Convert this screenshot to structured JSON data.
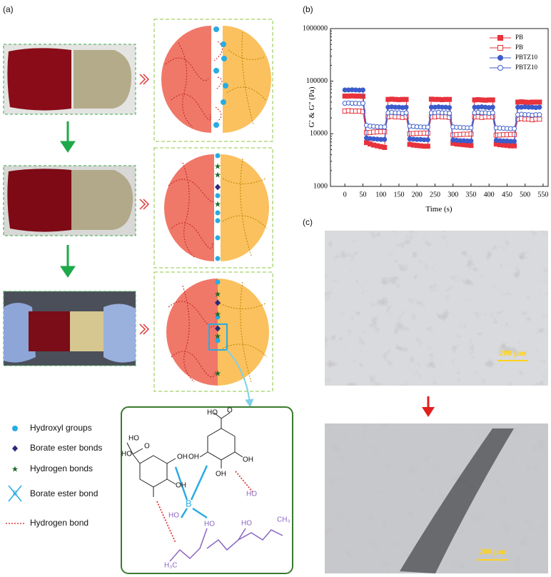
{
  "panel_labels": [
    "(a)",
    "(b)",
    "(c)"
  ],
  "legend": [
    "Hydroxyl groups",
    "Borate ester bonds",
    "Hydrogen bonds",
    "Borate ester bond",
    "Hydrogen bond"
  ],
  "legend_symbol": "B",
  "scale_bars": [
    "200 μm",
    "200 μm"
  ],
  "structure_labels": [
    "HO",
    "O",
    "HO",
    "OH",
    "OH",
    "HO",
    "O",
    "OH",
    "OH",
    "OH",
    "B",
    "HO",
    "HO",
    "HO",
    "HO",
    "CH₃",
    "H₃C"
  ],
  "chart_data": {
    "type": "line",
    "ylabel": "G' & G'' (Pa)",
    "xlabel": "Time (s)",
    "log_y": true,
    "legend": "top-right",
    "x": [
      0,
      10,
      20,
      30,
      40,
      50,
      60,
      70,
      80,
      90,
      100,
      110,
      120,
      130,
      140,
      150,
      160,
      170,
      180,
      190,
      200,
      210,
      220,
      230,
      240,
      250,
      260,
      270,
      280,
      290,
      300,
      310,
      320,
      330,
      340,
      350,
      360,
      370,
      380,
      390,
      400,
      410,
      420,
      430,
      440,
      450,
      460,
      470,
      480,
      490,
      500,
      510,
      520,
      530,
      540
    ],
    "xlim": [
      -40,
      564
    ],
    "xticks": [
      0,
      50,
      100,
      150,
      200,
      250,
      300,
      350,
      400,
      450,
      500,
      550
    ],
    "ylim": [
      1000,
      1000000
    ],
    "yticks": [
      1000,
      10000,
      100000,
      1000000
    ],
    "series": [
      {
        "name": "PB",
        "color": "#e8323c",
        "marker": "square",
        "fill": "filled",
        "values": [
          52000,
          52000,
          52500,
          52000,
          52000,
          51500,
          6800,
          6400,
          6100,
          5900,
          5700,
          5500,
          45000,
          45500,
          45000,
          44500,
          45000,
          45000,
          6300,
          6100,
          6000,
          5900,
          5800,
          5800,
          45500,
          45000,
          45000,
          44500,
          45000,
          45000,
          6600,
          6400,
          6300,
          6200,
          6100,
          6000,
          44000,
          44500,
          44000,
          43500,
          44000,
          44000,
          6400,
          6200,
          6100,
          6000,
          5900,
          5900,
          40000,
          40500,
          40000,
          39500,
          40000,
          40000,
          40000
        ]
      },
      {
        "name": "PB",
        "color": "#e8323c",
        "marker": "square",
        "fill": "open",
        "values": [
          27000,
          27500,
          27000,
          27000,
          27000,
          26500,
          10500,
          10600,
          10800,
          10900,
          11000,
          11000,
          21000,
          21500,
          21000,
          21000,
          20500,
          21000,
          10000,
          10100,
          10200,
          10200,
          10300,
          10300,
          21000,
          21000,
          21500,
          21000,
          21000,
          20500,
          9500,
          9600,
          9700,
          9800,
          9800,
          9900,
          21000,
          21000,
          20500,
          21000,
          21000,
          21000,
          9400,
          9500,
          9600,
          9600,
          9700,
          9700,
          19000,
          19500,
          19000,
          19000,
          18500,
          19000,
          19000
        ]
      },
      {
        "name": "PBTZ10",
        "color": "#3c5ccc",
        "marker": "circle",
        "fill": "filled",
        "values": [
          68000,
          68000,
          68500,
          68000,
          67500,
          68000,
          8300,
          8100,
          8000,
          7900,
          7800,
          7800,
          32000,
          32500,
          32000,
          32000,
          31500,
          32000,
          8000,
          7900,
          7800,
          7800,
          7700,
          7700,
          32000,
          32000,
          32500,
          32000,
          32000,
          31500,
          7600,
          7500,
          7400,
          7400,
          7300,
          7300,
          32000,
          32000,
          32500,
          32000,
          31500,
          32000,
          7500,
          7400,
          7300,
          7300,
          7200,
          7200,
          32000,
          32000,
          32500,
          32000,
          32000,
          31500,
          32000
        ]
      },
      {
        "name": "PBTZ10",
        "color": "#3c5ccc",
        "marker": "circle",
        "fill": "open",
        "values": [
          38000,
          38500,
          38000,
          38000,
          37500,
          38000,
          14500,
          14000,
          13800,
          13600,
          13500,
          13500,
          25000,
          25500,
          25000,
          25000,
          24500,
          25000,
          14000,
          13800,
          13600,
          13500,
          13400,
          13400,
          25000,
          25000,
          25500,
          25000,
          25000,
          24500,
          13500,
          13300,
          13200,
          13100,
          13000,
          13000,
          25000,
          25500,
          25000,
          25000,
          24500,
          25000,
          13000,
          12800,
          12700,
          12600,
          12500,
          12500,
          23000,
          23500,
          23000,
          23000,
          22500,
          23000,
          23000
        ]
      }
    ]
  }
}
